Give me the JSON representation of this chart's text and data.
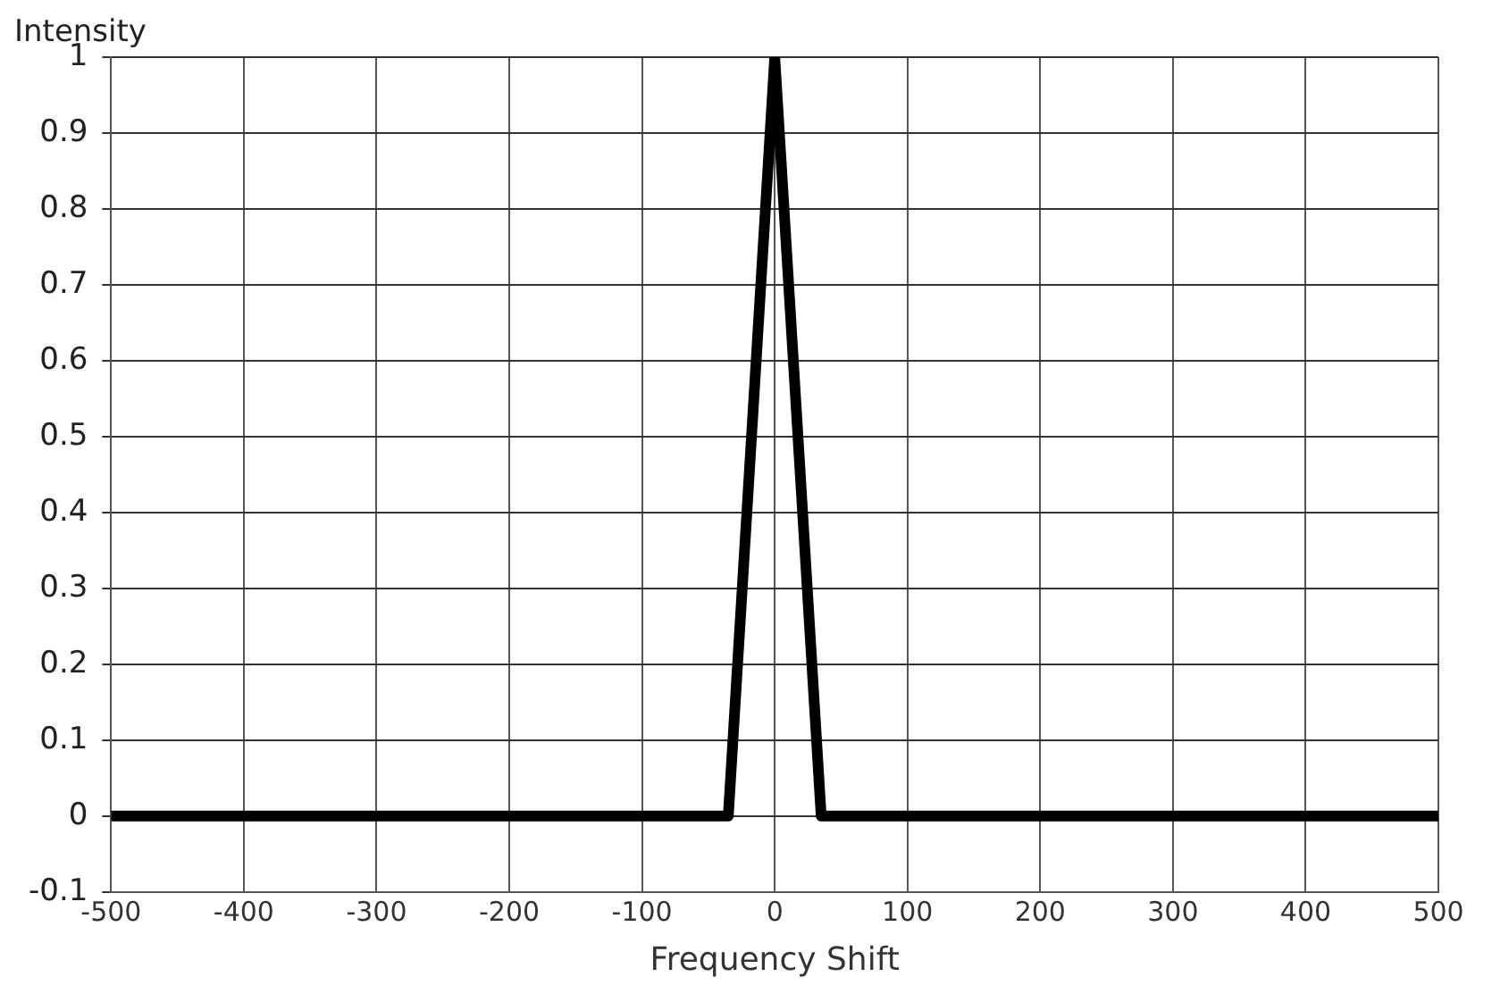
{
  "chart_data": {
    "type": "line",
    "xlabel": "Frequency Shift",
    "ylabel": "Intensity",
    "x": [
      -500,
      -35,
      0,
      35,
      500
    ],
    "series": [
      {
        "color": "#000000",
        "values": [
          0,
          0,
          1,
          0,
          0
        ]
      }
    ],
    "xlim": [
      -500,
      500
    ],
    "xticks": [
      -500,
      -400,
      -300,
      -200,
      -100,
      0,
      100,
      200,
      300,
      400,
      500
    ],
    "ylim": [
      -0.1,
      1
    ],
    "yticks": [
      -0.1,
      0,
      0.1,
      0.2,
      0.3,
      0.4,
      0.5,
      0.6,
      0.7,
      0.8,
      0.9,
      1
    ],
    "grid": true,
    "legend": false,
    "marker": "none",
    "line_style": "solid"
  }
}
